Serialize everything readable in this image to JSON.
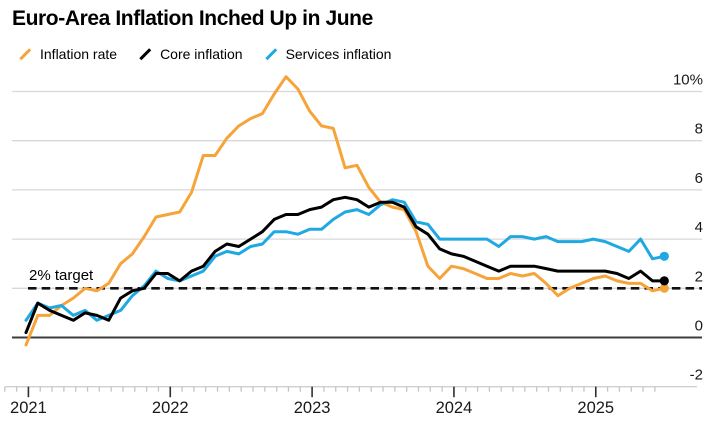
{
  "header": {
    "title": "Euro-Area Inflation Inched Up in June"
  },
  "colors": {
    "background": "#ffffff",
    "gridline": "#d8d8d8",
    "zero_line": "#3d3d3d",
    "target_line": "#111111",
    "axis_text": "#191919",
    "tick_minor": "#c4c4c4",
    "tick_major": "#2f2f2f",
    "axis_baseline": "#cfcfcf"
  },
  "chart_data": {
    "type": "line",
    "title": "Euro-Area Inflation Inched Up in June",
    "x_start": "2020-12",
    "x_end": "2025-06",
    "x_frequency": "monthly",
    "x_tick_labels": [
      "2021",
      "2022",
      "2023",
      "2024",
      "2025"
    ],
    "y_ticks": [
      {
        "label": "10%",
        "value": 10
      },
      {
        "label": "8",
        "value": 8
      },
      {
        "label": "6",
        "value": 6
      },
      {
        "label": "4",
        "value": 4
      },
      {
        "label": "2",
        "value": 2
      },
      {
        "label": "0",
        "value": 0
      },
      {
        "label": "-2",
        "value": -2
      }
    ],
    "ylim": [
      -2,
      10.8
    ],
    "grid": "horizontal",
    "legend_position": "top-left",
    "end_markers": true,
    "target_line": {
      "label": "2% target",
      "value": 2,
      "style": "dashed"
    },
    "series": [
      {
        "name": "Inflation rate",
        "slug": "inflation-rate",
        "color": "#f6a43a",
        "values": [
          -0.3,
          0.9,
          0.9,
          1.3,
          1.6,
          2.0,
          1.9,
          2.2,
          3.0,
          3.4,
          4.1,
          4.9,
          5.0,
          5.1,
          5.9,
          7.4,
          7.4,
          8.1,
          8.6,
          8.9,
          9.1,
          9.9,
          10.6,
          10.1,
          9.2,
          8.6,
          8.5,
          6.9,
          7.0,
          6.1,
          5.5,
          5.3,
          5.2,
          4.3,
          2.9,
          2.4,
          2.9,
          2.8,
          2.6,
          2.4,
          2.4,
          2.6,
          2.5,
          2.6,
          2.2,
          1.7,
          2.0,
          2.2,
          2.4,
          2.5,
          2.3,
          2.2,
          2.2,
          1.9,
          2.0
        ]
      },
      {
        "name": "Core inflation",
        "slug": "core-inflation",
        "color": "#000000",
        "values": [
          0.2,
          1.4,
          1.1,
          0.9,
          0.7,
          1.0,
          0.9,
          0.7,
          1.6,
          1.9,
          2.0,
          2.6,
          2.6,
          2.3,
          2.7,
          2.9,
          3.5,
          3.8,
          3.7,
          4.0,
          4.3,
          4.8,
          5.0,
          5.0,
          5.2,
          5.3,
          5.6,
          5.7,
          5.6,
          5.3,
          5.5,
          5.5,
          5.3,
          4.5,
          4.2,
          3.6,
          3.4,
          3.3,
          3.1,
          2.9,
          2.7,
          2.9,
          2.9,
          2.9,
          2.8,
          2.7,
          2.7,
          2.7,
          2.7,
          2.7,
          2.6,
          2.4,
          2.7,
          2.3,
          2.3
        ]
      },
      {
        "name": "Services inflation",
        "slug": "services-inflation",
        "color": "#20a8e3",
        "values": [
          0.7,
          1.4,
          1.2,
          1.3,
          0.9,
          1.1,
          0.7,
          0.9,
          1.1,
          1.7,
          2.1,
          2.7,
          2.4,
          2.3,
          2.5,
          2.7,
          3.3,
          3.5,
          3.4,
          3.7,
          3.8,
          4.3,
          4.3,
          4.2,
          4.4,
          4.4,
          4.8,
          5.1,
          5.2,
          5.0,
          5.4,
          5.6,
          5.5,
          4.7,
          4.6,
          4.0,
          4.0,
          4.0,
          4.0,
          4.0,
          3.7,
          4.1,
          4.1,
          4.0,
          4.1,
          3.9,
          3.9,
          3.9,
          4.0,
          3.9,
          3.7,
          3.5,
          4.0,
          3.2,
          3.3
        ]
      }
    ]
  }
}
